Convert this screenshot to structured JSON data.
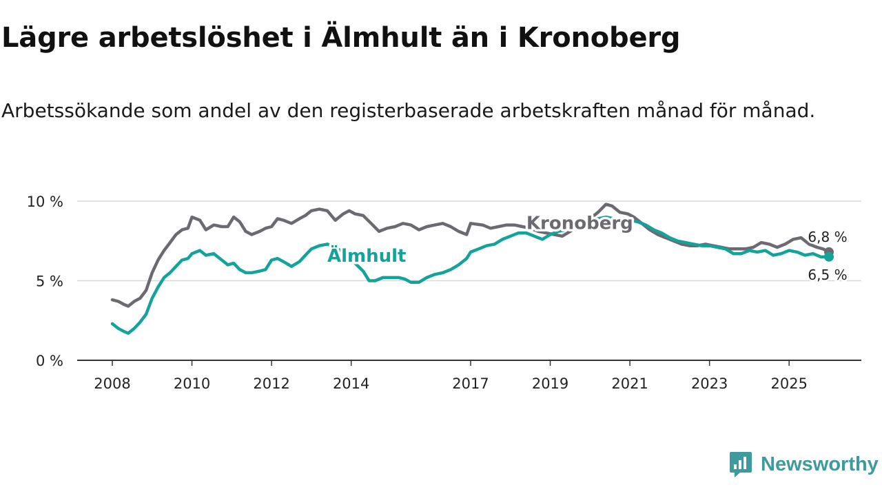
{
  "title": "Lägre arbetslöshet i Älmhult än i Kronoberg",
  "subtitle": "Arbetssökande som andel av den registerbaserade arbetskraften månad för månad.",
  "brand": {
    "name": "Newsworthy",
    "icon": "newsworthy-logo-icon"
  },
  "colors": {
    "almhult": "#14a39a",
    "kronoberg": "#6c6a70",
    "grid": "#d9d9d9",
    "axis": "#333333"
  },
  "chart_data": {
    "type": "line",
    "title": "Lägre arbetslöshet i Älmhult än i Kronoberg",
    "xlabel": "",
    "ylabel": "",
    "xlim": [
      2008.0,
      2026.0
    ],
    "ylim": [
      0,
      10
    ],
    "grid": true,
    "x_ticks": [
      {
        "value": 2008,
        "label": "2008"
      },
      {
        "value": 2010,
        "label": "2010"
      },
      {
        "value": 2012,
        "label": "2012"
      },
      {
        "value": 2014,
        "label": "2014"
      },
      {
        "value": 2017,
        "label": "2017"
      },
      {
        "value": 2019,
        "label": "2019"
      },
      {
        "value": 2021,
        "label": "2021"
      },
      {
        "value": 2023,
        "label": "2023"
      },
      {
        "value": 2025,
        "label": "2025"
      }
    ],
    "y_ticks": [
      {
        "value": 0,
        "label": "0 %"
      },
      {
        "value": 5,
        "label": "5 %"
      },
      {
        "value": 10,
        "label": "10 %"
      }
    ],
    "series": [
      {
        "name": "Kronoberg",
        "label": "Kronoberg",
        "end_label": "6,8 %",
        "points": [
          [
            2008.0,
            3.8
          ],
          [
            2008.15,
            3.7
          ],
          [
            2008.3,
            3.5
          ],
          [
            2008.4,
            3.4
          ],
          [
            2008.55,
            3.7
          ],
          [
            2008.7,
            3.9
          ],
          [
            2008.85,
            4.4
          ],
          [
            2009.0,
            5.5
          ],
          [
            2009.15,
            6.3
          ],
          [
            2009.3,
            6.9
          ],
          [
            2009.45,
            7.4
          ],
          [
            2009.6,
            7.9
          ],
          [
            2009.75,
            8.2
          ],
          [
            2009.9,
            8.3
          ],
          [
            2010.0,
            9.0
          ],
          [
            2010.2,
            8.8
          ],
          [
            2010.35,
            8.2
          ],
          [
            2010.55,
            8.5
          ],
          [
            2010.75,
            8.4
          ],
          [
            2010.9,
            8.4
          ],
          [
            2011.05,
            9.0
          ],
          [
            2011.2,
            8.7
          ],
          [
            2011.35,
            8.1
          ],
          [
            2011.5,
            7.9
          ],
          [
            2011.7,
            8.1
          ],
          [
            2011.85,
            8.3
          ],
          [
            2012.0,
            8.4
          ],
          [
            2012.15,
            8.9
          ],
          [
            2012.3,
            8.8
          ],
          [
            2012.5,
            8.6
          ],
          [
            2012.7,
            8.9
          ],
          [
            2012.85,
            9.1
          ],
          [
            2013.0,
            9.4
          ],
          [
            2013.2,
            9.5
          ],
          [
            2013.4,
            9.4
          ],
          [
            2013.6,
            8.8
          ],
          [
            2013.8,
            9.2
          ],
          [
            2013.95,
            9.4
          ],
          [
            2014.1,
            9.2
          ],
          [
            2014.3,
            9.1
          ],
          [
            2014.5,
            8.6
          ],
          [
            2014.7,
            8.1
          ],
          [
            2014.9,
            8.3
          ],
          [
            2015.1,
            8.4
          ],
          [
            2015.3,
            8.6
          ],
          [
            2015.5,
            8.5
          ],
          [
            2015.7,
            8.2
          ],
          [
            2015.9,
            8.4
          ],
          [
            2016.1,
            8.5
          ],
          [
            2016.3,
            8.6
          ],
          [
            2016.5,
            8.4
          ],
          [
            2016.7,
            8.1
          ],
          [
            2016.9,
            7.9
          ],
          [
            2017.0,
            8.6
          ],
          [
            2017.3,
            8.5
          ],
          [
            2017.5,
            8.3
          ],
          [
            2017.7,
            8.4
          ],
          [
            2017.9,
            8.5
          ],
          [
            2018.1,
            8.5
          ],
          [
            2018.3,
            8.4
          ],
          [
            2018.5,
            8.3
          ],
          [
            2018.7,
            8.1
          ],
          [
            2018.9,
            8.0
          ],
          [
            2019.1,
            7.9
          ],
          [
            2019.3,
            7.8
          ],
          [
            2019.5,
            8.1
          ],
          [
            2019.8,
            8.6
          ],
          [
            2020.0,
            8.9
          ],
          [
            2020.2,
            9.3
          ],
          [
            2020.4,
            9.8
          ],
          [
            2020.55,
            9.7
          ],
          [
            2020.75,
            9.3
          ],
          [
            2020.95,
            9.2
          ],
          [
            2021.1,
            9.0
          ],
          [
            2021.3,
            8.6
          ],
          [
            2021.5,
            8.2
          ],
          [
            2021.7,
            7.9
          ],
          [
            2021.9,
            7.7
          ],
          [
            2022.1,
            7.5
          ],
          [
            2022.3,
            7.3
          ],
          [
            2022.5,
            7.2
          ],
          [
            2022.7,
            7.2
          ],
          [
            2022.9,
            7.3
          ],
          [
            2023.1,
            7.2
          ],
          [
            2023.3,
            7.1
          ],
          [
            2023.5,
            7.0
          ],
          [
            2023.7,
            7.0
          ],
          [
            2023.9,
            7.0
          ],
          [
            2024.1,
            7.1
          ],
          [
            2024.3,
            7.4
          ],
          [
            2024.5,
            7.3
          ],
          [
            2024.7,
            7.1
          ],
          [
            2024.9,
            7.3
          ],
          [
            2025.1,
            7.6
          ],
          [
            2025.3,
            7.7
          ],
          [
            2025.5,
            7.3
          ],
          [
            2025.7,
            7.1
          ],
          [
            2025.85,
            7.0
          ],
          [
            2026.0,
            6.8
          ]
        ]
      },
      {
        "name": "Älmhult",
        "label": "Älmhult",
        "end_label": "6,5 %",
        "points": [
          [
            2008.0,
            2.3
          ],
          [
            2008.15,
            2.0
          ],
          [
            2008.3,
            1.8
          ],
          [
            2008.4,
            1.7
          ],
          [
            2008.55,
            2.0
          ],
          [
            2008.7,
            2.4
          ],
          [
            2008.85,
            2.9
          ],
          [
            2009.0,
            3.9
          ],
          [
            2009.15,
            4.6
          ],
          [
            2009.3,
            5.2
          ],
          [
            2009.45,
            5.5
          ],
          [
            2009.6,
            5.9
          ],
          [
            2009.75,
            6.3
          ],
          [
            2009.9,
            6.4
          ],
          [
            2010.0,
            6.7
          ],
          [
            2010.2,
            6.9
          ],
          [
            2010.35,
            6.6
          ],
          [
            2010.55,
            6.7
          ],
          [
            2010.75,
            6.3
          ],
          [
            2010.9,
            6.0
          ],
          [
            2011.05,
            6.1
          ],
          [
            2011.2,
            5.7
          ],
          [
            2011.35,
            5.5
          ],
          [
            2011.5,
            5.5
          ],
          [
            2011.7,
            5.6
          ],
          [
            2011.85,
            5.7
          ],
          [
            2012.0,
            6.3
          ],
          [
            2012.15,
            6.4
          ],
          [
            2012.3,
            6.2
          ],
          [
            2012.5,
            5.9
          ],
          [
            2012.7,
            6.2
          ],
          [
            2012.85,
            6.6
          ],
          [
            2013.0,
            7.0
          ],
          [
            2013.2,
            7.2
          ],
          [
            2013.4,
            7.3
          ],
          [
            2013.6,
            7.1
          ],
          [
            2013.8,
            6.8
          ],
          [
            2013.95,
            6.5
          ],
          [
            2014.1,
            6.1
          ],
          [
            2014.3,
            5.6
          ],
          [
            2014.45,
            5.0
          ],
          [
            2014.6,
            5.0
          ],
          [
            2014.8,
            5.2
          ],
          [
            2015.0,
            5.2
          ],
          [
            2015.2,
            5.2
          ],
          [
            2015.35,
            5.1
          ],
          [
            2015.5,
            4.9
          ],
          [
            2015.7,
            4.9
          ],
          [
            2015.9,
            5.2
          ],
          [
            2016.1,
            5.4
          ],
          [
            2016.3,
            5.5
          ],
          [
            2016.5,
            5.7
          ],
          [
            2016.7,
            6.0
          ],
          [
            2016.9,
            6.4
          ],
          [
            2017.0,
            6.8
          ],
          [
            2017.2,
            7.0
          ],
          [
            2017.4,
            7.2
          ],
          [
            2017.6,
            7.3
          ],
          [
            2017.8,
            7.6
          ],
          [
            2018.0,
            7.8
          ],
          [
            2018.2,
            8.0
          ],
          [
            2018.4,
            8.0
          ],
          [
            2018.6,
            7.8
          ],
          [
            2018.8,
            7.6
          ],
          [
            2019.0,
            7.9
          ],
          [
            2019.2,
            8.1
          ],
          [
            2019.4,
            8.2
          ],
          [
            2019.6,
            8.4
          ],
          [
            2019.8,
            8.5
          ],
          [
            2020.0,
            8.7
          ],
          [
            2020.2,
            8.9
          ],
          [
            2020.4,
            9.0
          ],
          [
            2020.6,
            8.9
          ],
          [
            2020.8,
            8.8
          ],
          [
            2021.0,
            8.8
          ],
          [
            2021.2,
            8.7
          ],
          [
            2021.4,
            8.5
          ],
          [
            2021.6,
            8.2
          ],
          [
            2021.8,
            8.0
          ],
          [
            2022.0,
            7.7
          ],
          [
            2022.2,
            7.5
          ],
          [
            2022.4,
            7.4
          ],
          [
            2022.6,
            7.3
          ],
          [
            2022.8,
            7.2
          ],
          [
            2023.0,
            7.2
          ],
          [
            2023.2,
            7.1
          ],
          [
            2023.4,
            7.0
          ],
          [
            2023.6,
            6.7
          ],
          [
            2023.8,
            6.7
          ],
          [
            2024.0,
            6.9
          ],
          [
            2024.2,
            6.8
          ],
          [
            2024.4,
            6.9
          ],
          [
            2024.6,
            6.6
          ],
          [
            2024.8,
            6.7
          ],
          [
            2025.0,
            6.9
          ],
          [
            2025.2,
            6.8
          ],
          [
            2025.4,
            6.6
          ],
          [
            2025.6,
            6.7
          ],
          [
            2025.8,
            6.5
          ],
          [
            2026.0,
            6.5
          ]
        ]
      }
    ]
  }
}
